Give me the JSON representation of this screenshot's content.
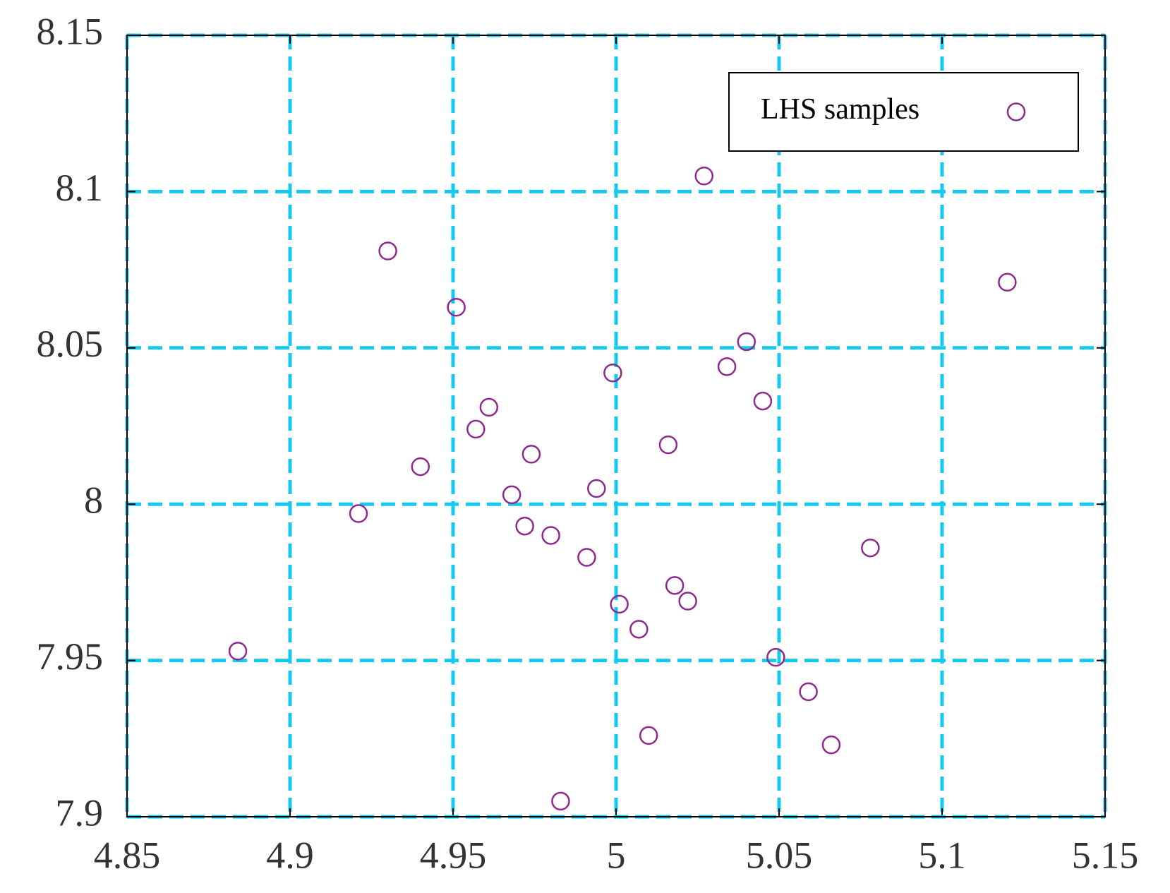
{
  "chart_data": {
    "type": "scatter",
    "xlim": [
      4.85,
      5.15
    ],
    "xticks": [
      4.85,
      4.9,
      4.95,
      5,
      5.05,
      5.1,
      5.15
    ],
    "ylim": [
      7.9,
      8.15
    ],
    "yticks": [
      7.9,
      7.95,
      8,
      8.05,
      8.1,
      8.15
    ],
    "grid": true,
    "grid_color": "#17c8ef",
    "legend": "upper right",
    "series": [
      {
        "name": "LHS samples",
        "color": "#8e2a8e",
        "x": [
          5.027,
          4.93,
          5.12,
          4.951,
          5.04,
          5.034,
          4.999,
          5.045,
          4.961,
          4.957,
          5.016,
          4.974,
          4.94,
          4.994,
          4.968,
          4.921,
          4.972,
          4.98,
          5.078,
          4.991,
          5.018,
          5.022,
          5.001,
          5.007,
          4.884,
          5.049,
          5.059,
          5.01,
          5.066,
          4.983
        ],
        "values": [
          8.105,
          8.081,
          8.071,
          8.063,
          8.052,
          8.044,
          8.042,
          8.033,
          8.031,
          8.024,
          8.019,
          8.016,
          8.012,
          8.005,
          8.003,
          7.997,
          7.993,
          7.99,
          7.986,
          7.983,
          7.974,
          7.969,
          7.968,
          7.96,
          7.953,
          7.951,
          7.94,
          7.926,
          7.923,
          7.905
        ]
      }
    ]
  }
}
